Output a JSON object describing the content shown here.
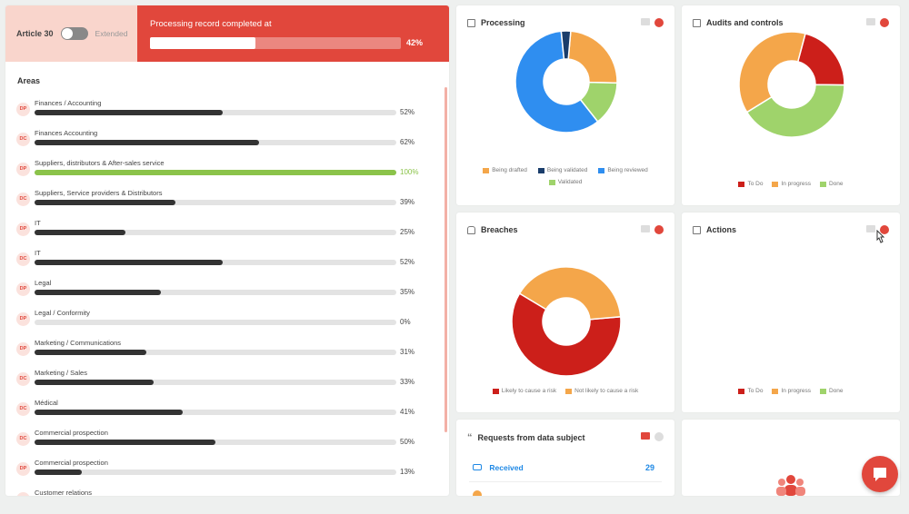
{
  "header": {
    "article_label": "Article 30",
    "extended_label": "Extended",
    "processing_text": "Processing record completed at",
    "processing_pct": "42%",
    "processing_value": 42
  },
  "areas": {
    "title": "Areas",
    "items": [
      {
        "badge": "DP",
        "name": "Finances / Accounting",
        "pct": "52%",
        "value": 52,
        "color": "#333333"
      },
      {
        "badge": "DC",
        "name": "Finances Accounting",
        "pct": "62%",
        "value": 62,
        "color": "#333333"
      },
      {
        "badge": "DP",
        "name": "Suppliers, distributors & After-sales service",
        "pct": "100%",
        "value": 100,
        "color": "#8bc34a"
      },
      {
        "badge": "DC",
        "name": "Suppliers, Service providers & Distributors",
        "pct": "39%",
        "value": 39,
        "color": "#333333"
      },
      {
        "badge": "DP",
        "name": "IT",
        "pct": "25%",
        "value": 25,
        "color": "#333333"
      },
      {
        "badge": "DC",
        "name": "IT",
        "pct": "52%",
        "value": 52,
        "color": "#333333"
      },
      {
        "badge": "DP",
        "name": "Legal",
        "pct": "35%",
        "value": 35,
        "color": "#333333"
      },
      {
        "badge": "DP",
        "name": "Legal / Conformity",
        "pct": "0%",
        "value": 0,
        "color": "#333333"
      },
      {
        "badge": "DP",
        "name": "Marketing / Communications",
        "pct": "31%",
        "value": 31,
        "color": "#333333"
      },
      {
        "badge": "DC",
        "name": "Marketing / Sales",
        "pct": "33%",
        "value": 33,
        "color": "#333333"
      },
      {
        "badge": "DC",
        "name": "Médical",
        "pct": "41%",
        "value": 41,
        "color": "#333333"
      },
      {
        "badge": "DC",
        "name": "Commercial prospection",
        "pct": "50%",
        "value": 50,
        "color": "#333333"
      },
      {
        "badge": "DP",
        "name": "Commercial prospection",
        "pct": "13%",
        "value": 13,
        "color": "#333333"
      },
      {
        "badge": "DC",
        "name": "Customer relations",
        "pct": "",
        "value": 0,
        "color": "#333333"
      }
    ]
  },
  "cards": {
    "processing": {
      "title": "Processing",
      "icon": "table-icon",
      "legend": [
        {
          "label": "Being drafted",
          "color": "#f4a64a"
        },
        {
          "label": "Being validated",
          "color": "#1a3d6b"
        },
        {
          "label": "Being reviewed",
          "color": "#2f8ef0"
        },
        {
          "label": "Validated",
          "color": "#9fd36b"
        }
      ]
    },
    "audits": {
      "title": "Audits and controls",
      "icon": "clipboard-icon",
      "legend": [
        {
          "label": "To Do",
          "color": "#cc1f1a"
        },
        {
          "label": "In progress",
          "color": "#f4a64a"
        },
        {
          "label": "Done",
          "color": "#9fd36b"
        }
      ]
    },
    "breaches": {
      "title": "Breaches",
      "icon": "lock-icon",
      "legend": [
        {
          "label": "Likely to cause a risk",
          "color": "#cc1f1a"
        },
        {
          "label": "Not likely to cause a risk",
          "color": "#f4a64a"
        }
      ]
    },
    "actions": {
      "title": "Actions",
      "icon": "calendar-icon",
      "legend": [
        {
          "label": "To Do",
          "color": "#cc1f1a"
        },
        {
          "label": "In progress",
          "color": "#f4a64a"
        },
        {
          "label": "Done",
          "color": "#9fd36b"
        }
      ]
    },
    "requests": {
      "title": "Requests from data subject",
      "icon": "quote-icon",
      "received_label": "Received",
      "received_count": "29"
    }
  },
  "chart_data": [
    {
      "type": "pie",
      "title": "Processing",
      "labels": [
        "Being drafted",
        "Validated",
        "Being reviewed",
        "Being validated"
      ],
      "values": [
        24,
        14,
        59,
        3
      ],
      "colors": [
        "#f4a64a",
        "#9fd36b",
        "#2f8ef0",
        "#1a3d6b"
      ]
    },
    {
      "type": "pie",
      "title": "Audits and controls",
      "labels": [
        "To Do",
        "Done",
        "In progress"
      ],
      "values": [
        21,
        41,
        38
      ],
      "colors": [
        "#cc1f1a",
        "#9fd36b",
        "#f4a64a"
      ]
    },
    {
      "type": "pie",
      "title": "Breaches",
      "labels": [
        "Likely to cause a risk",
        "Not likely to cause a risk"
      ],
      "values": [
        60,
        40
      ],
      "colors": [
        "#cc1f1a",
        "#f4a64a"
      ]
    }
  ]
}
